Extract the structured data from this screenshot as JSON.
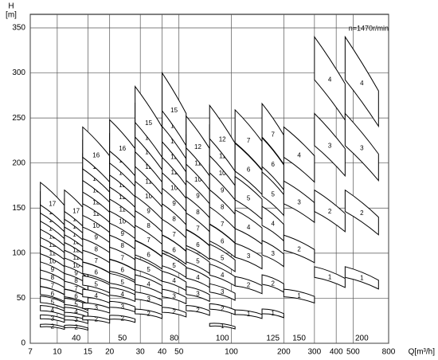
{
  "chart_data": {
    "type": "pump-selection",
    "y_label": "H",
    "y_unit": "[m]",
    "x_label": "Q[m³/h]",
    "annotation": "n=1470r/min",
    "log_x": true,
    "grid": true,
    "color": "#000000",
    "xlim": [
      7,
      800
    ],
    "ylim": [
      0,
      365
    ],
    "xticks": [
      7,
      10,
      15,
      20,
      30,
      40,
      50,
      100,
      200,
      300,
      400,
      500,
      800
    ],
    "yticks": [
      0,
      50,
      100,
      150,
      200,
      250,
      300,
      350
    ],
    "families": [
      {
        "name": null,
        "q": [
          8,
          11
        ],
        "head": [
          10.5,
          9
        ],
        "stages": [
          2,
          3,
          4,
          5,
          6,
          7,
          8,
          9,
          10,
          11,
          12,
          13,
          14,
          15,
          16,
          17
        ]
      },
      {
        "name": "40",
        "q": [
          11,
          15
        ],
        "head": [
          10,
          8.5
        ],
        "stages": [
          2,
          3,
          4,
          5,
          6,
          7,
          8,
          9,
          10,
          11,
          12,
          13,
          14,
          15,
          16,
          17
        ]
      },
      {
        "name": null,
        "q": [
          14,
          20
        ],
        "head": [
          15,
          13
        ],
        "stages": [
          2,
          3,
          4,
          5,
          6,
          7,
          8,
          9,
          10,
          11,
          12,
          13,
          14,
          15,
          16
        ]
      },
      {
        "name": "50",
        "q": [
          20,
          28
        ],
        "head": [
          15.5,
          13.5
        ],
        "stages": [
          2,
          3,
          4,
          5,
          6,
          7,
          8,
          9,
          10,
          11,
          12,
          13,
          14,
          15,
          16
        ]
      },
      {
        "name": null,
        "q": [
          28,
          40
        ],
        "head": [
          19,
          16
        ],
        "stages": [
          2,
          3,
          4,
          5,
          6,
          7,
          8,
          9,
          10,
          11,
          12,
          13,
          14,
          15
        ]
      },
      {
        "name": "80",
        "q": [
          40,
          55
        ],
        "head": [
          20,
          17
        ],
        "stages": [
          2,
          3,
          4,
          5,
          6,
          7,
          8,
          9,
          10,
          11,
          12,
          13,
          14,
          15
        ]
      },
      {
        "name": null,
        "q": [
          55,
          75
        ],
        "head": [
          21,
          18
        ],
        "stages": [
          2,
          3,
          4,
          5,
          6,
          7,
          8,
          9,
          10,
          11,
          12
        ]
      },
      {
        "name": "100",
        "q": [
          75,
          105
        ],
        "head": [
          22,
          18.5
        ],
        "stages": [
          1,
          2,
          3,
          4,
          5,
          6,
          7,
          8,
          9,
          10,
          11,
          12
        ]
      },
      {
        "name": null,
        "q": [
          105,
          150
        ],
        "head": [
          37,
          32
        ],
        "stages": [
          1,
          2,
          3,
          4,
          5,
          6,
          7
        ]
      },
      {
        "name": "125",
        "q": [
          150,
          200
        ],
        "head": [
          38,
          33
        ],
        "stages": [
          1,
          2,
          3,
          4,
          5,
          6,
          7
        ]
      },
      {
        "name": "150",
        "q": [
          200,
          300
        ],
        "head": [
          60,
          52
        ],
        "stages": [
          1,
          2,
          3,
          4
        ]
      },
      {
        "name": null,
        "q": [
          300,
          450
        ],
        "head": [
          85,
          72
        ],
        "stages": [
          1,
          2,
          3,
          4
        ]
      },
      {
        "name": "200",
        "q": [
          450,
          700
        ],
        "head": [
          85,
          70
        ],
        "stages": [
          1,
          2,
          3,
          4
        ]
      }
    ]
  }
}
